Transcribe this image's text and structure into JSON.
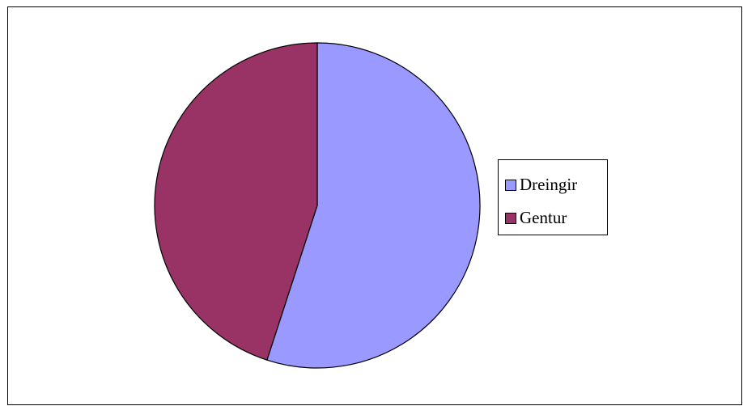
{
  "chart_data": {
    "type": "pie",
    "categories": [
      "Dreingir",
      "Gentur"
    ],
    "values": [
      55,
      45
    ],
    "colors": [
      "#9999ff",
      "#993366"
    ],
    "start_angle": 0,
    "direction": "clockwise",
    "legend": "right"
  }
}
